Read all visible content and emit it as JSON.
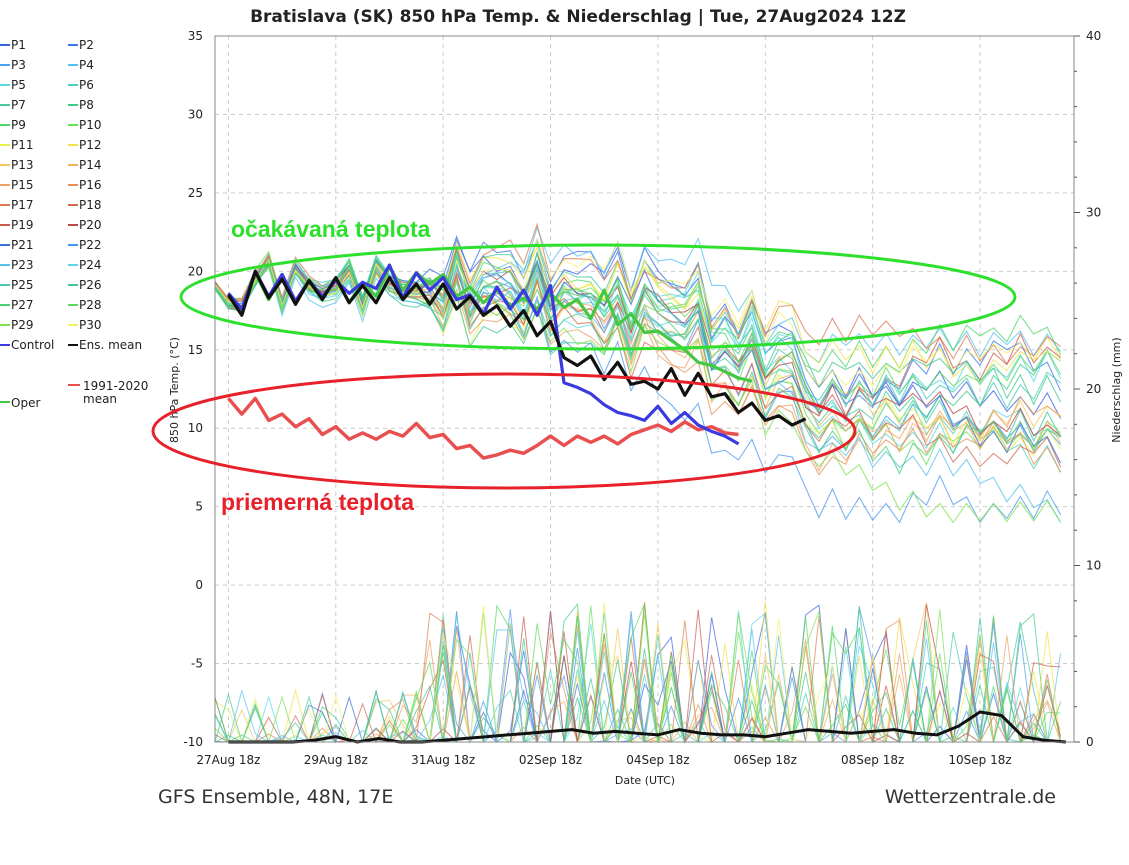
{
  "chart_data": {
    "type": "line",
    "title": "Bratislava  (SK)  850 hPa Temp. & Niederschlag | Tue, 27Aug2024 12Z",
    "xlabel": "Date (UTC)",
    "ylabel": "850 hPa Temp. (°C)",
    "y2label": "Niederschlag (mm)",
    "x_ticks": [
      "27Aug 18z",
      "29Aug 18z",
      "31Aug 18z",
      "02Sep 18z",
      "04Sep 18z",
      "06Sep 18z",
      "08Sep 18z",
      "10Sep 18z"
    ],
    "x_range_days": [
      0,
      16
    ],
    "ylim": [
      -10,
      35
    ],
    "yticks": [
      35,
      30,
      25,
      20,
      15,
      10,
      5,
      0,
      -5,
      -10
    ],
    "y2lim": [
      0,
      40
    ],
    "y2ticks": [
      40,
      30,
      20,
      10,
      0
    ],
    "grid": true,
    "legend_position": "left-outside",
    "legend": [
      {
        "name": "P1",
        "color": "#3a62e0"
      },
      {
        "name": "P2",
        "color": "#3a78e8"
      },
      {
        "name": "P3",
        "color": "#4aa0f0"
      },
      {
        "name": "P4",
        "color": "#55c0f4"
      },
      {
        "name": "P5",
        "color": "#5ad8e6"
      },
      {
        "name": "P6",
        "color": "#4ed0c0"
      },
      {
        "name": "P7",
        "color": "#45c8a0"
      },
      {
        "name": "P8",
        "color": "#3fcc88"
      },
      {
        "name": "P9",
        "color": "#4ad86a"
      },
      {
        "name": "P10",
        "color": "#66e05a"
      },
      {
        "name": "P11",
        "color": "#e8f050"
      },
      {
        "name": "P12",
        "color": "#f4e04a"
      },
      {
        "name": "P13",
        "color": "#f4c85a"
      },
      {
        "name": "P14",
        "color": "#f0b060"
      },
      {
        "name": "P15",
        "color": "#eca064"
      },
      {
        "name": "P16",
        "color": "#e49058"
      },
      {
        "name": "P17",
        "color": "#dc7a54"
      },
      {
        "name": "P18",
        "color": "#d06a50"
      },
      {
        "name": "P19",
        "color": "#c85a4c"
      },
      {
        "name": "P20",
        "color": "#b84a48"
      },
      {
        "name": "P21",
        "color": "#3a70d8"
      },
      {
        "name": "P22",
        "color": "#4a98ec"
      },
      {
        "name": "P23",
        "color": "#5ac0ec"
      },
      {
        "name": "P24",
        "color": "#5ad6e8"
      },
      {
        "name": "P25",
        "color": "#48c8b0"
      },
      {
        "name": "P26",
        "color": "#40c890"
      },
      {
        "name": "P27",
        "color": "#46d070"
      },
      {
        "name": "P28",
        "color": "#5cd860"
      },
      {
        "name": "P29",
        "color": "#80e050"
      },
      {
        "name": "P30",
        "color": "#f2f06a"
      },
      {
        "name": "Control",
        "color": "#3a3ae0"
      },
      {
        "name": "Ens. mean",
        "color": "#111111"
      },
      {
        "name": "1991-2020 mean",
        "color": "#e85050"
      },
      {
        "name": "Oper",
        "color": "#44c844"
      }
    ],
    "series": [
      {
        "name": "Ens. mean",
        "color": "#111111",
        "values": [
          18.5,
          17.2,
          20.0,
          18.3,
          19.5,
          17.9,
          19.4,
          18.2,
          19.6,
          18.0,
          19.1,
          18.0,
          19.6,
          18.2,
          19.2,
          17.9,
          19.2,
          17.6,
          18.4,
          17.2,
          17.8,
          16.5,
          17.5,
          15.9,
          16.8,
          14.5,
          14.0,
          14.6,
          13.1,
          14.2,
          12.8,
          13.0,
          12.5,
          13.8,
          12.1,
          13.5,
          12.0,
          12.2,
          11.0,
          11.6,
          10.5,
          10.8,
          10.2,
          10.6
        ]
      },
      {
        "name": "Control",
        "color": "#3a3ae0",
        "values": [
          18.6,
          17.6,
          20.0,
          18.4,
          19.8,
          18.1,
          19.4,
          18.4,
          19.4,
          18.6,
          19.3,
          18.9,
          20.4,
          18.3,
          19.9,
          18.8,
          19.6,
          18.2,
          18.5,
          17.3,
          19.0,
          17.6,
          18.8,
          17.2,
          19.1,
          12.9,
          12.6,
          12.2,
          11.5,
          11.0,
          10.8,
          10.5,
          11.4,
          10.3,
          11.0,
          10.2,
          9.8,
          9.5,
          9.0
        ]
      },
      {
        "name": "Oper",
        "color": "#44c844",
        "values": [
          18.4,
          17.4,
          19.9,
          18.2,
          19.8,
          18.0,
          19.5,
          18.3,
          19.5,
          18.0,
          19.3,
          18.4,
          20.3,
          18.8,
          19.9,
          19.2,
          19.8,
          18.4,
          19.0,
          18.0,
          18.8,
          17.8,
          18.3,
          17.6,
          18.6,
          17.7,
          18.2,
          17.0,
          18.8,
          16.6,
          17.3,
          16.1,
          16.2,
          15.6,
          15.0,
          14.2,
          14.0,
          13.6,
          13.2,
          13.0
        ]
      },
      {
        "name": "1991-2020 mean",
        "color": "#e85050",
        "values": [
          11.9,
          10.9,
          11.9,
          10.5,
          10.9,
          10.1,
          10.6,
          9.6,
          10.1,
          9.3,
          9.7,
          9.3,
          9.8,
          9.5,
          10.3,
          9.4,
          9.6,
          8.7,
          8.9,
          8.1,
          8.3,
          8.6,
          8.4,
          8.9,
          9.5,
          8.9,
          9.5,
          9.1,
          9.5,
          9.0,
          9.6,
          9.9,
          10.2,
          9.8,
          10.4,
          9.9,
          10.1,
          9.7,
          9.6
        ]
      }
    ],
    "precipitation": {
      "name": "Ens. mean",
      "values": [
        0,
        0,
        0,
        0,
        0.1,
        0.3,
        0,
        0.2,
        0,
        0,
        0.1,
        0.2,
        0.3,
        0.4,
        0.5,
        0.6,
        0.7,
        0.5,
        0.6,
        0.5,
        0.4,
        0.7,
        0.5,
        0.4,
        0.4,
        0.3,
        0.5,
        0.7,
        0.6,
        0.5,
        0.6,
        0.7,
        0.5,
        0.4,
        0.9,
        1.7,
        1.5,
        0.3,
        0.1,
        0
      ]
    },
    "annotations": [
      {
        "text": "očakávaná teplota",
        "color": "#2ee02e"
      },
      {
        "text": "priemerná teplota",
        "color": "#e8202a"
      }
    ]
  },
  "footer": {
    "left": "GFS Ensemble, 48N, 17E",
    "right": "Wetterzentrale.de"
  }
}
